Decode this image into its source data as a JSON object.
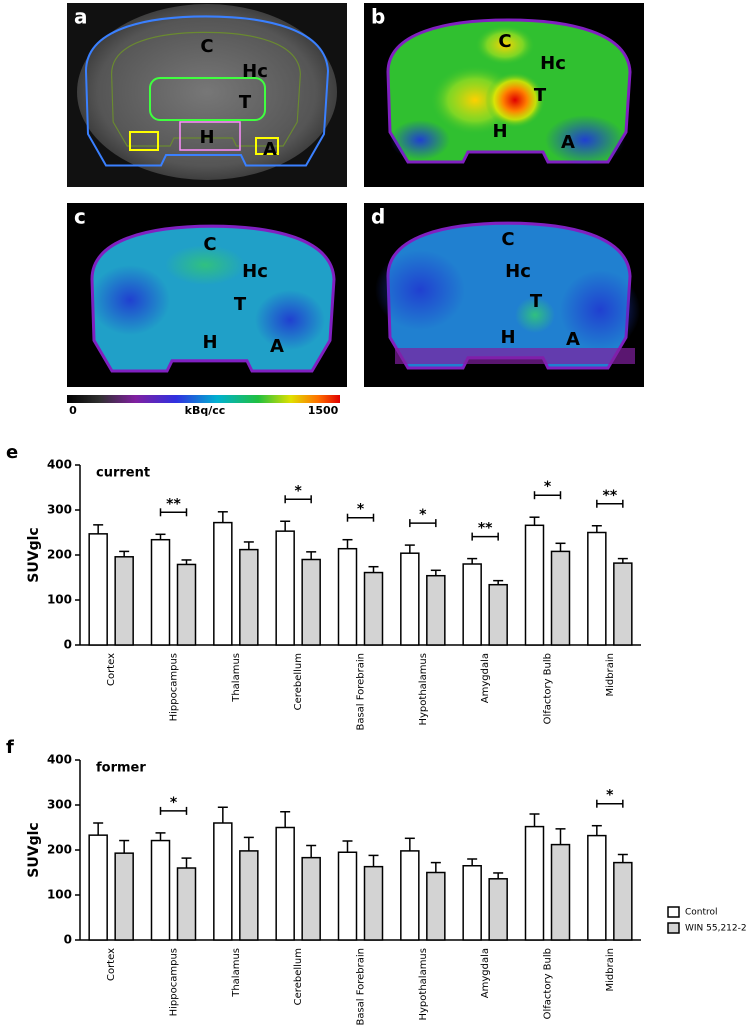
{
  "images": [
    {
      "label": "a",
      "regions": [
        "C",
        "Hc",
        "T",
        "H",
        "A"
      ]
    },
    {
      "label": "b",
      "regions": [
        "C",
        "Hc",
        "T",
        "H",
        "A"
      ]
    },
    {
      "label": "c",
      "regions": [
        "C",
        "Hc",
        "T",
        "H",
        "A"
      ]
    },
    {
      "label": "d",
      "regions": [
        "C",
        "Hc",
        "T",
        "H",
        "A"
      ]
    }
  ],
  "colorbar": {
    "min": 0,
    "unit": "kBq/cc",
    "max": 1500
  },
  "chart_data": [
    {
      "type": "bar",
      "panel_label": "e",
      "title": "current",
      "y_label": "SUVglc",
      "categories": [
        "Cortex",
        "Hippocampus",
        "Thalamus",
        "Cerebellum",
        "Basal Forebrain",
        "Hypothalamus",
        "Amygdala",
        "Olfactory Bulb",
        "Midbrain"
      ],
      "series": [
        {
          "color": "#ffffff",
          "values": [
            247,
            234,
            272,
            253,
            214,
            204,
            180,
            266,
            250
          ],
          "errors": [
            20,
            12,
            24,
            22,
            20,
            18,
            12,
            18,
            15
          ]
        },
        {
          "color": "#d3d3d3",
          "values": [
            196,
            179,
            212,
            190,
            161,
            154,
            134,
            208,
            182
          ],
          "errors": [
            12,
            10,
            17,
            17,
            13,
            12,
            9,
            18,
            10
          ]
        }
      ],
      "significance": [
        null,
        "**",
        null,
        "*",
        "*",
        "*",
        "**",
        "*",
        "**"
      ],
      "ylim": [
        0,
        400
      ],
      "yticks": [
        0,
        100,
        200,
        300,
        400
      ]
    },
    {
      "type": "bar",
      "panel_label": "f",
      "title": "former",
      "y_label": "SUVglc",
      "categories": [
        "Cortex",
        "Hippocampus",
        "Thalamus",
        "Cerebellum",
        "Basal Forebrain",
        "Hypothalamus",
        "Amygdala",
        "Olfactory Bulb",
        "Midbrain"
      ],
      "series": [
        {
          "name": "Control",
          "color": "#ffffff",
          "values": [
            233,
            221,
            260,
            250,
            195,
            198,
            165,
            252,
            232
          ],
          "errors": [
            27,
            17,
            35,
            35,
            25,
            28,
            15,
            28,
            22
          ]
        },
        {
          "name": "WIN 55,212-2",
          "color": "#d3d3d3",
          "values": [
            193,
            160,
            198,
            183,
            163,
            150,
            136,
            212,
            172
          ],
          "errors": [
            28,
            22,
            30,
            27,
            25,
            22,
            13,
            35,
            18
          ]
        }
      ],
      "significance": [
        null,
        "*",
        null,
        null,
        null,
        null,
        null,
        null,
        "*"
      ],
      "ylim": [
        0,
        400
      ],
      "yticks": [
        0,
        100,
        200,
        300,
        400
      ],
      "legend": "lower right"
    }
  ]
}
